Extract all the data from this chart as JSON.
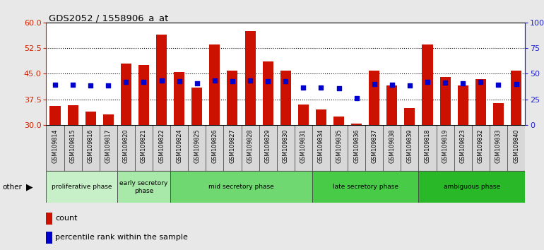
{
  "title": "GDS2052 / 1558906_a_at",
  "samples": [
    "GSM109814",
    "GSM109815",
    "GSM109816",
    "GSM109817",
    "GSM109820",
    "GSM109821",
    "GSM109822",
    "GSM109824",
    "GSM109825",
    "GSM109826",
    "GSM109827",
    "GSM109828",
    "GSM109829",
    "GSM109830",
    "GSM109831",
    "GSM109834",
    "GSM109835",
    "GSM109836",
    "GSM109837",
    "GSM109838",
    "GSM109839",
    "GSM109818",
    "GSM109819",
    "GSM109823",
    "GSM109832",
    "GSM109833",
    "GSM109840"
  ],
  "red_counts": [
    35.5,
    35.8,
    34.0,
    33.2,
    48.0,
    47.5,
    56.5,
    45.5,
    41.0,
    53.5,
    46.0,
    57.5,
    48.5,
    46.0,
    36.0,
    34.5,
    32.5,
    30.5,
    46.0,
    41.5,
    35.0,
    53.5,
    44.0,
    41.5,
    43.5,
    36.5,
    46.0
  ],
  "blue_percentiles": [
    39.5,
    39.0,
    38.5,
    38.5,
    42.0,
    42.0,
    43.5,
    43.0,
    40.5,
    43.5,
    43.0,
    43.5,
    43.0,
    42.5,
    36.5,
    36.5,
    36.0,
    26.0,
    40.0,
    39.5,
    38.5,
    42.0,
    41.0,
    40.5,
    42.0,
    39.0,
    40.0
  ],
  "phase_groups": [
    {
      "label": "proliferative phase",
      "count": 4,
      "color": "#c8f0c8"
    },
    {
      "label": "early secretory\nphase",
      "count": 3,
      "color": "#a8e8a8"
    },
    {
      "label": "mid secretory phase",
      "count": 8,
      "color": "#70d870"
    },
    {
      "label": "late secretory phase",
      "count": 6,
      "color": "#48cc48"
    },
    {
      "label": "ambiguous phase",
      "count": 6,
      "color": "#28b828"
    }
  ],
  "ylim_left": [
    30,
    60
  ],
  "ylim_right": [
    0,
    100
  ],
  "yticks_left": [
    30,
    37.5,
    45,
    52.5,
    60
  ],
  "yticks_right": [
    0,
    25,
    50,
    75,
    100
  ],
  "bar_color": "#cc1100",
  "dot_color": "#0000cc",
  "background_color": "#e8e8e8",
  "plot_bg_color": "#ffffff",
  "xtick_bg_color": "#d8d8d8",
  "legend_count_color": "#cc1100",
  "legend_pct_color": "#0000cc"
}
